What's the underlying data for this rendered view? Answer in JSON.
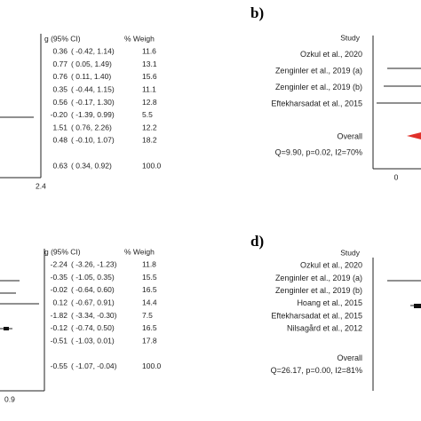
{
  "panels": [
    {
      "label": null,
      "header": [
        "g (95% CI)",
        "% Weigh"
      ],
      "rows": [
        [
          "0.36",
          "( -0.42,  1.14)",
          "11.6"
        ],
        [
          "0.77",
          "(  0.05,  1.49)",
          "13.1"
        ],
        [
          "0.76",
          "(  0.11,  1.40)",
          "15.6"
        ],
        [
          "0.35",
          "( -0.44,  1.15)",
          "11.1"
        ],
        [
          "0.56",
          "( -0.17,  1.30)",
          "12.8"
        ],
        [
          "-0.20",
          "( -1.39,  0.99)",
          "5.5"
        ],
        [
          "1.51",
          "(  0.76,  2.26)",
          "12.2"
        ],
        [
          "0.48",
          "( -0.10,  1.07)",
          "18.2"
        ],
        [
          "0.63",
          "(  0.34,  0.92)",
          "100.0"
        ]
      ],
      "axis_label": "2.4"
    },
    {
      "label": "b)",
      "study_header": "Study",
      "studies": [
        "Ozkul et al., 2020",
        "Zenginler et al., 2019 (a)",
        "Zenginler et al., 2019 (b)",
        "Eftekharsadat et al., 2015"
      ],
      "overall": "Overall",
      "heterogeneity": "Q=9.90, p=0.02, I2=70%",
      "axis_label": "0"
    },
    {
      "label": null,
      "header": [
        "g (95% CI)",
        "% Weigh"
      ],
      "rows": [
        [
          "-2.24",
          "( -3.26, -1.23)",
          "11.8"
        ],
        [
          "-0.35",
          "( -1.05,  0.35)",
          "15.5"
        ],
        [
          "-0.02",
          "( -0.64,  0.60)",
          "16.5"
        ],
        [
          "0.12",
          "( -0.67,  0.91)",
          "14.4"
        ],
        [
          "-1.82",
          "( -3.34, -0.30)",
          "7.5"
        ],
        [
          "-0.12",
          "( -0.74,  0.50)",
          "16.5"
        ],
        [
          "-0.51",
          "( -1.03,  0.01)",
          "17.8"
        ],
        [
          "-0.55",
          "( -1.07, -0.04)",
          "100.0"
        ]
      ],
      "axis_label": "0.9"
    },
    {
      "label": "d)",
      "study_header": "Study",
      "studies": [
        "Ozkul et al., 2020",
        "Zenginler et al., 2019 (a)",
        "Zenginler et al., 2019 (b)",
        "Hoang et al., 2015",
        "Eftekharsadat et al., 2015",
        "Nilsagård et al., 2012"
      ],
      "overall": "Overall",
      "heterogeneity": "Q=26.17, p=0.00, I2=81%"
    }
  ]
}
